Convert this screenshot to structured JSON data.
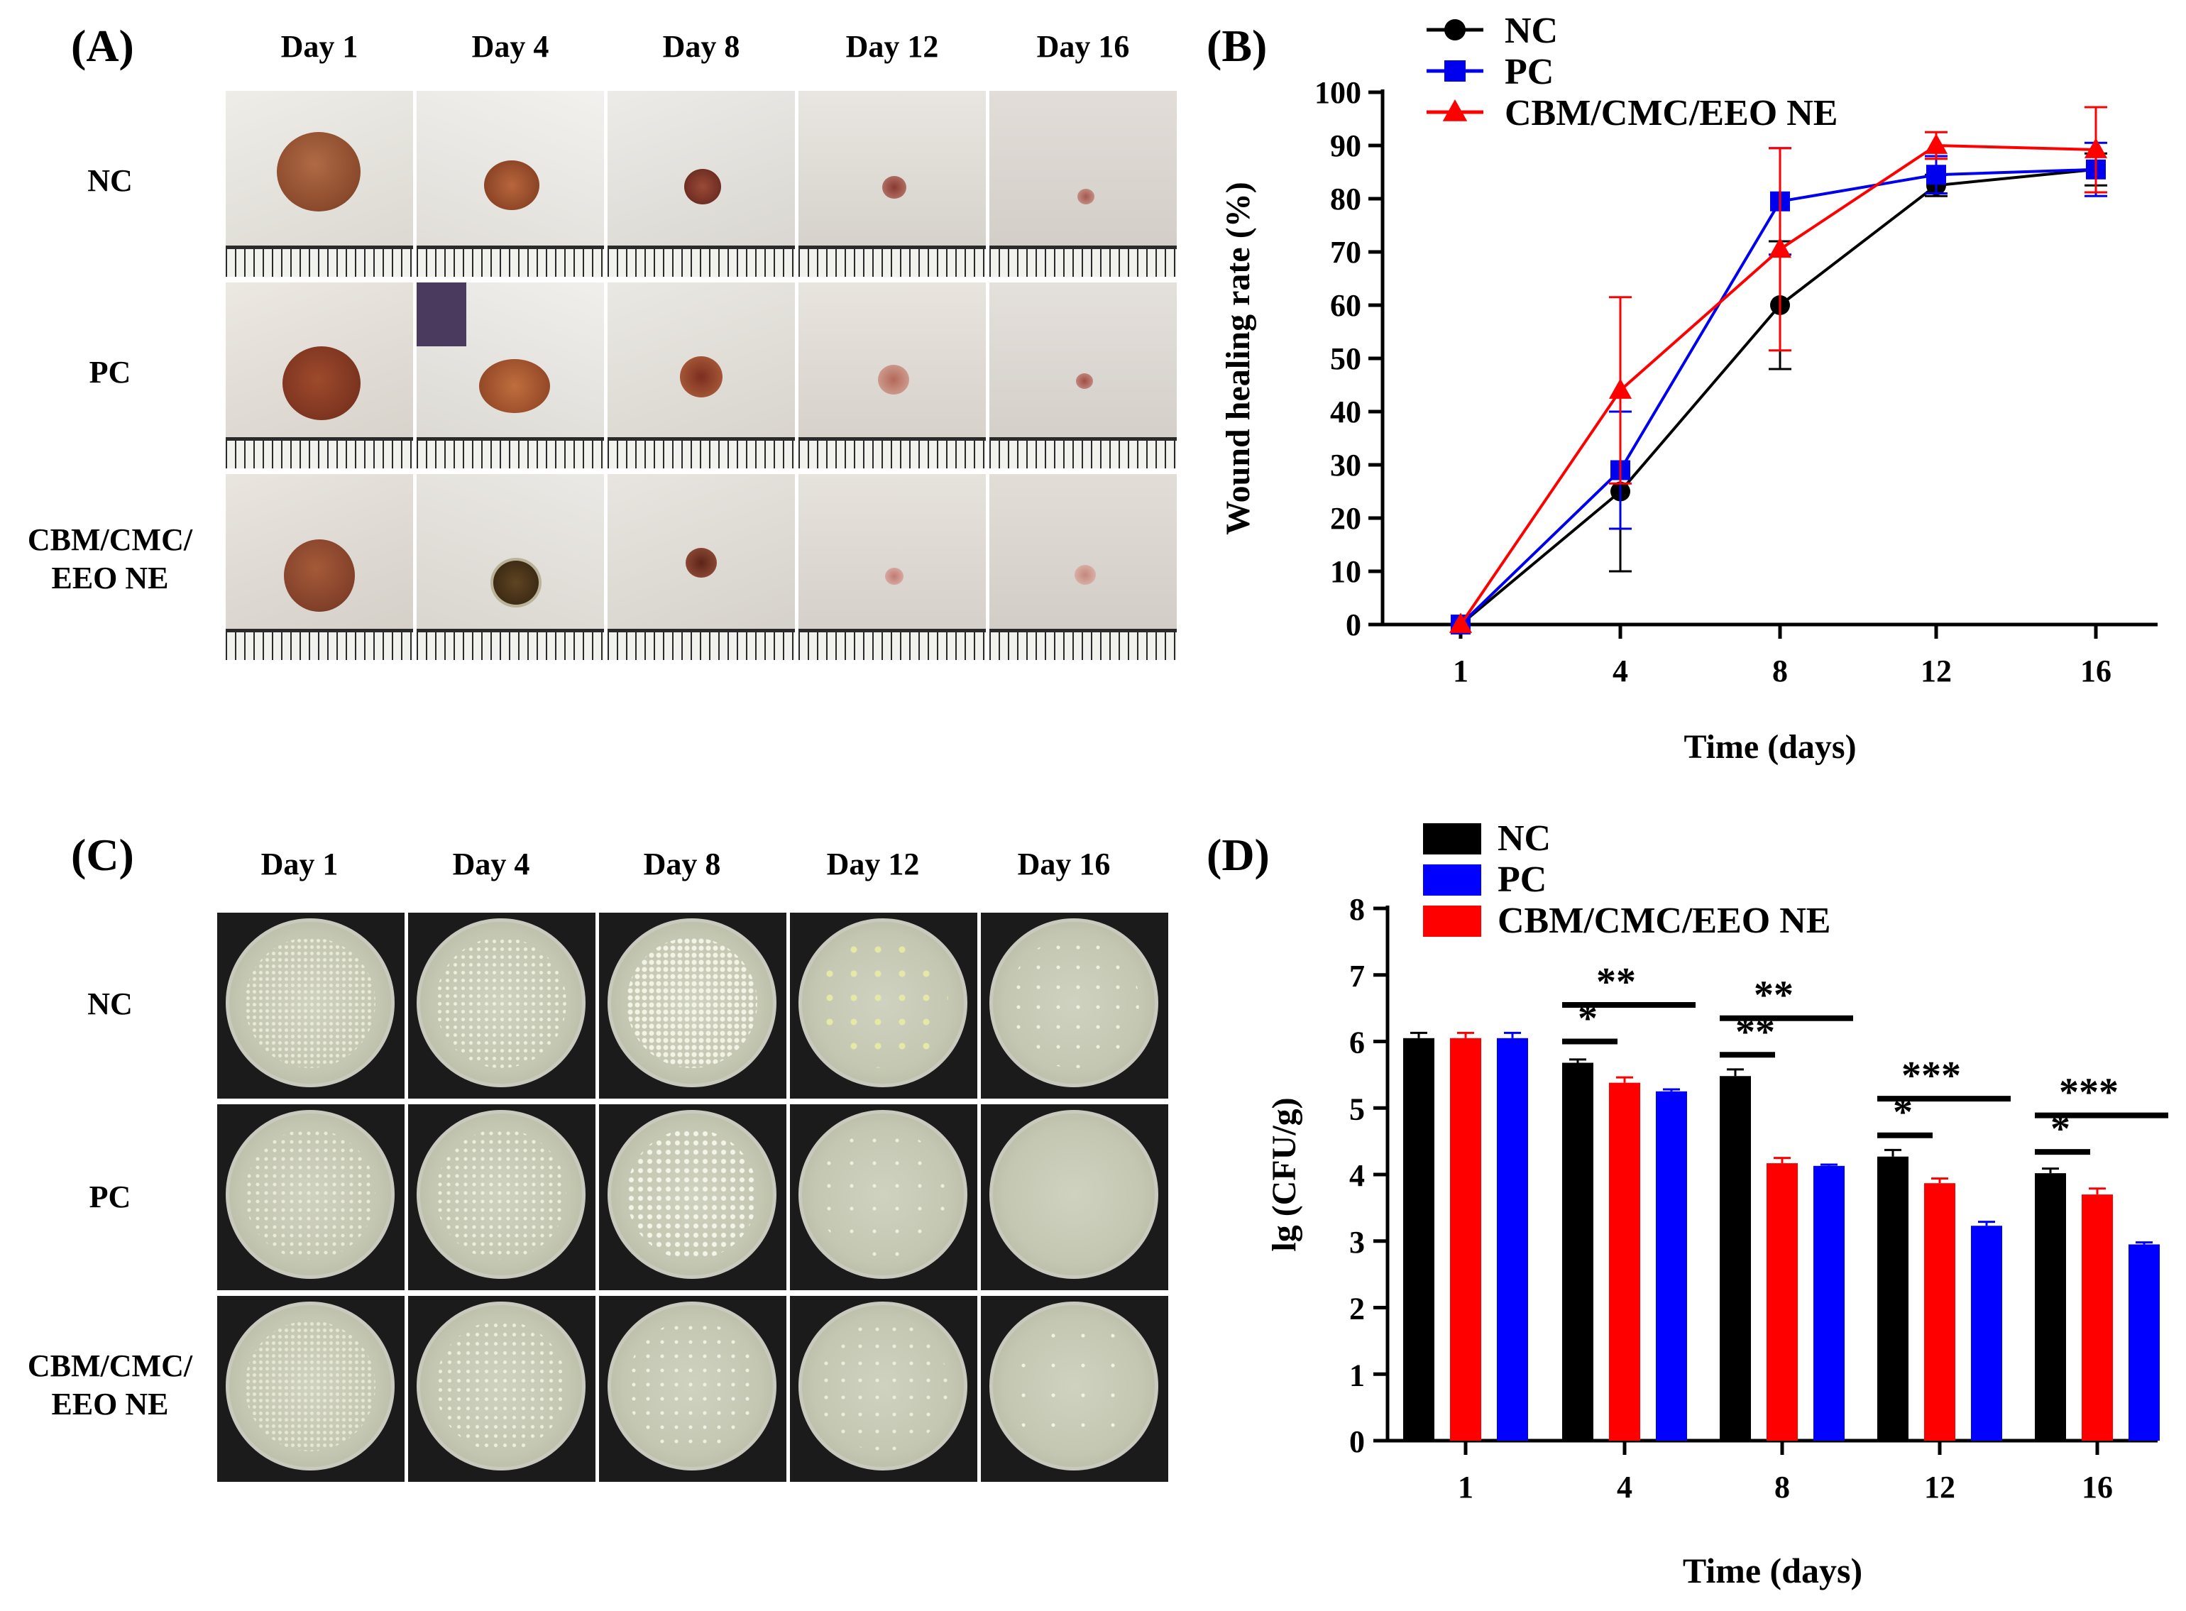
{
  "panels": {
    "a": "(A)",
    "b": "(B)",
    "c": "(C)",
    "d": "(D)"
  },
  "photo_grid_a": {
    "days": [
      "Day 1",
      "Day 4",
      "Day 8",
      "Day 12",
      "Day 16"
    ],
    "groups": [
      "NC",
      "PC",
      "CBM/CMC/ EEO NE"
    ],
    "group_lines": [
      [
        "NC"
      ],
      [
        "PC"
      ],
      [
        "CBM/CMC/",
        "EEO NE"
      ]
    ]
  },
  "photo_grid_c": {
    "days": [
      "Day 1",
      "Day 4",
      "Day 8",
      "Day 12",
      "Day 16"
    ],
    "groups": [
      "NC",
      "PC",
      "CBM/CMC/ EEO NE"
    ],
    "group_lines": [
      [
        "NC"
      ],
      [
        "PC"
      ],
      [
        "CBM/CMC/",
        "EEO NE"
      ]
    ]
  },
  "chart_data": [
    {
      "id": "B",
      "type": "line",
      "xlabel": "Time (days)",
      "ylabel": "Wound healing rate (%)",
      "x": [
        1,
        4,
        8,
        12,
        16
      ],
      "xticks": [
        "1",
        "4",
        "8",
        "12",
        "16"
      ],
      "ylim": [
        0,
        100
      ],
      "yticks": [
        0,
        10,
        20,
        30,
        40,
        50,
        60,
        70,
        80,
        90,
        100
      ],
      "legend_position": "top-left",
      "series": [
        {
          "name": "NC",
          "color": "#000000",
          "marker": "circle",
          "values": [
            0,
            25,
            60,
            82.5,
            85.5
          ],
          "errors": [
            0,
            15,
            12,
            2,
            3
          ]
        },
        {
          "name": "PC",
          "color": "#0000ee",
          "marker": "square",
          "values": [
            0,
            29,
            79.5,
            84.5,
            85.5
          ],
          "errors": [
            0,
            11,
            10,
            3.5,
            5
          ]
        },
        {
          "name": "CBM/CMC/EEO NE",
          "color": "#ff0000",
          "marker": "triangle",
          "values": [
            0,
            44,
            70.5,
            90,
            89.2
          ],
          "errors": [
            0,
            17.5,
            19,
            2.5,
            8
          ]
        }
      ]
    },
    {
      "id": "D",
      "type": "bar",
      "xlabel": "Time (days)",
      "ylabel": "lg (CFU/g)",
      "categories": [
        "1",
        "4",
        "8",
        "12",
        "16"
      ],
      "ylim": [
        0,
        8
      ],
      "yticks": [
        0,
        1,
        2,
        3,
        4,
        5,
        6,
        7,
        8
      ],
      "legend_position": "top-left",
      "legend": [
        "NC",
        "PC",
        "CBM/CMC/EEO NE"
      ],
      "legend_colors": [
        "#000000",
        "#0000ff",
        "#ff0000"
      ],
      "bar_order": [
        "NC",
        "CBM/CMC/EEO NE",
        "PC"
      ],
      "series": [
        {
          "name": "NC",
          "color": "#000000",
          "values": [
            6.05,
            5.68,
            5.48,
            4.27,
            4.02
          ],
          "errors": [
            0.08,
            0.05,
            0.1,
            0.1,
            0.07
          ]
        },
        {
          "name": "CBM/CMC/EEO NE",
          "color": "#ff0000",
          "values": [
            6.05,
            5.38,
            4.17,
            3.87,
            3.7
          ],
          "errors": [
            0.08,
            0.08,
            0.08,
            0.07,
            0.09
          ]
        },
        {
          "name": "PC",
          "color": "#0000ff",
          "values": [
            6.05,
            5.25,
            4.13,
            3.23,
            2.95
          ],
          "errors": [
            0.08,
            0.03,
            0.02,
            0.06,
            0.03
          ]
        }
      ],
      "significance": [
        {
          "category": "4",
          "from": "NC",
          "to": "CBM/CMC/EEO NE",
          "label": "*"
        },
        {
          "category": "4",
          "from": "NC",
          "to": "PC",
          "label": "**"
        },
        {
          "category": "8",
          "from": "NC",
          "to": "CBM/CMC/EEO NE",
          "label": "**"
        },
        {
          "category": "8",
          "from": "NC",
          "to": "PC",
          "label": "**"
        },
        {
          "category": "12",
          "from": "NC",
          "to": "CBM/CMC/EEO NE",
          "label": "*"
        },
        {
          "category": "12",
          "from": "NC",
          "to": "PC",
          "label": "***"
        },
        {
          "category": "16",
          "from": "NC",
          "to": "CBM/CMC/EEO NE",
          "label": "*"
        },
        {
          "category": "16",
          "from": "NC",
          "to": "PC",
          "label": "***"
        }
      ]
    }
  ]
}
